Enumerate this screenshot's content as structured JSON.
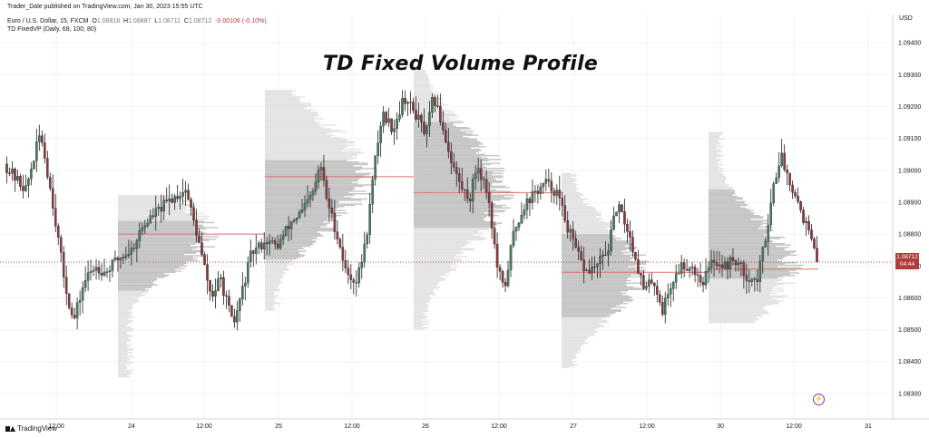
{
  "header": {
    "publisher": "Trader_Dale published on TradingView.com, Jan 30, 2023 15:55 UTC",
    "symbol": "Euro / U.S. Dollar, 15, FXCM",
    "ohlc": {
      "o_label": "O",
      "o": "1.08818",
      "h_label": "H",
      "h": "1.08887",
      "l_label": "L",
      "l": "1.08711",
      "c_label": "C",
      "c": "1.08712",
      "change": "-0.00106 (-0.10%)"
    },
    "indicator": "TD FixedVP (Daily, 68, 100, 80)"
  },
  "title": "TD Fixed Volume Profile",
  "currency": "USD",
  "price_tag": {
    "price": "1.08712",
    "countdown": "04:44"
  },
  "logo": {
    "text": "TradingView"
  },
  "colors": {
    "up": "#4a7a60",
    "down": "#8b3a3a",
    "wick": "#222222",
    "profile_outer": "#e3e3e3",
    "profile_value_area": "#c4c4c4",
    "poc_line": "#e07070",
    "last_price": "#b23a3a",
    "grid": "#f0f3fa"
  },
  "icons": {
    "logo": "tradingview-logo-icon",
    "bolt": "lightning-icon"
  },
  "chart_data": {
    "type": "candlestick",
    "title": "TD Fixed Volume Profile",
    "y_axis": {
      "ticks": [
        "1.09400",
        "1.09300",
        "1.09200",
        "1.09100",
        "1.09000",
        "1.08900",
        "1.08800",
        "1.08700",
        "1.08600",
        "1.08500",
        "1.08400",
        "1.08300"
      ],
      "range": [
        1.0822,
        1.0952
      ]
    },
    "x_axis": {
      "ticks": [
        "12:00",
        "24",
        "12:00",
        "25",
        "12:00",
        "26",
        "12:00",
        "27",
        "12:00",
        "30",
        "12:00",
        "31"
      ]
    },
    "grid": true,
    "last_price": 1.08712,
    "price_path": [
      [
        0,
        1.0902
      ],
      [
        0.35,
        1.0897
      ],
      [
        0.6,
        1.0894
      ],
      [
        1.0,
        1.0912
      ],
      [
        1.35,
        1.0889
      ],
      [
        1.65,
        1.0866
      ],
      [
        1.9,
        1.0852
      ],
      [
        2.2,
        1.0865
      ],
      [
        2.5,
        1.087
      ],
      [
        2.8,
        1.0868
      ],
      [
        3.1,
        1.0872
      ],
      [
        3.5,
        1.0875
      ],
      [
        3.8,
        1.0882
      ],
      [
        4.1,
        1.0886
      ],
      [
        4.6,
        1.0891
      ],
      [
        5.0,
        1.0894
      ],
      [
        5.3,
        1.088
      ],
      [
        5.7,
        1.086
      ],
      [
        5.95,
        1.0866
      ],
      [
        6.3,
        1.0851
      ],
      [
        6.5,
        1.086
      ],
      [
        6.8,
        1.0874
      ],
      [
        7.2,
        1.0878
      ],
      [
        7.5,
        1.0876
      ],
      [
        7.9,
        1.0884
      ],
      [
        8.2,
        1.0887
      ],
      [
        8.5,
        1.0893
      ],
      [
        8.7,
        1.0902
      ],
      [
        8.85,
        1.0892
      ],
      [
        9.2,
        1.0878
      ],
      [
        9.4,
        1.0868
      ],
      [
        9.7,
        1.0865
      ],
      [
        9.95,
        1.0878
      ],
      [
        10.2,
        1.0903
      ],
      [
        10.4,
        1.0918
      ],
      [
        10.7,
        1.0913
      ],
      [
        11.0,
        1.0923
      ],
      [
        11.35,
        1.0917
      ],
      [
        11.6,
        1.0911
      ],
      [
        11.8,
        1.0923
      ],
      [
        12.0,
        1.0916
      ],
      [
        12.3,
        1.0903
      ],
      [
        12.55,
        1.0895
      ],
      [
        12.8,
        1.0891
      ],
      [
        13.0,
        1.0902
      ],
      [
        13.3,
        1.0893
      ],
      [
        13.55,
        1.087
      ],
      [
        13.75,
        1.0862
      ],
      [
        14.0,
        1.088
      ],
      [
        14.3,
        1.0889
      ],
      [
        14.6,
        1.0893
      ],
      [
        14.9,
        1.0896
      ],
      [
        15.2,
        1.0893
      ],
      [
        15.5,
        1.0882
      ],
      [
        15.75,
        1.0874
      ],
      [
        16.0,
        1.0868
      ],
      [
        16.3,
        1.087
      ],
      [
        16.6,
        1.0875
      ],
      [
        16.85,
        1.0889
      ],
      [
        17.1,
        1.0883
      ],
      [
        17.35,
        1.0873
      ],
      [
        17.6,
        1.0862
      ],
      [
        17.85,
        1.0866
      ],
      [
        18.1,
        1.0856
      ],
      [
        18.3,
        1.0863
      ],
      [
        18.6,
        1.087
      ],
      [
        18.9,
        1.087
      ],
      [
        19.2,
        1.0865
      ],
      [
        19.5,
        1.0872
      ],
      [
        19.8,
        1.087
      ],
      [
        20.1,
        1.0872
      ],
      [
        20.4,
        1.0867
      ],
      [
        20.7,
        1.0865
      ],
      [
        20.95,
        1.088
      ],
      [
        21.15,
        1.0895
      ],
      [
        21.35,
        1.0905
      ],
      [
        21.55,
        1.0898
      ],
      [
        21.75,
        1.0893
      ],
      [
        21.95,
        1.0886
      ],
      [
        22.15,
        1.088
      ],
      [
        22.35,
        1.0871
      ]
    ],
    "day_boundaries_x_ticks": [
      "24",
      "25",
      "26",
      "27",
      "30",
      "31"
    ],
    "volume_profiles": [
      {
        "day": "24",
        "poc": 1.088,
        "value_area": [
          1.0862,
          1.0884
        ],
        "range": [
          1.0835,
          1.0892
        ]
      },
      {
        "day": "25",
        "poc": 1.0898,
        "value_area": [
          1.0872,
          1.0903
        ],
        "range": [
          1.0856,
          1.0925
        ]
      },
      {
        "day": "26",
        "poc": 1.0893,
        "value_area": [
          1.0882,
          1.0915
        ],
        "range": [
          1.085,
          1.0932
        ]
      },
      {
        "day": "27",
        "poc": 1.0868,
        "value_area": [
          1.0854,
          1.088
        ],
        "range": [
          1.0838,
          1.0899
        ]
      },
      {
        "day": "30",
        "poc": 1.0869,
        "value_area": [
          1.0866,
          1.0894
        ],
        "range": [
          1.0852,
          1.0912
        ]
      }
    ]
  }
}
